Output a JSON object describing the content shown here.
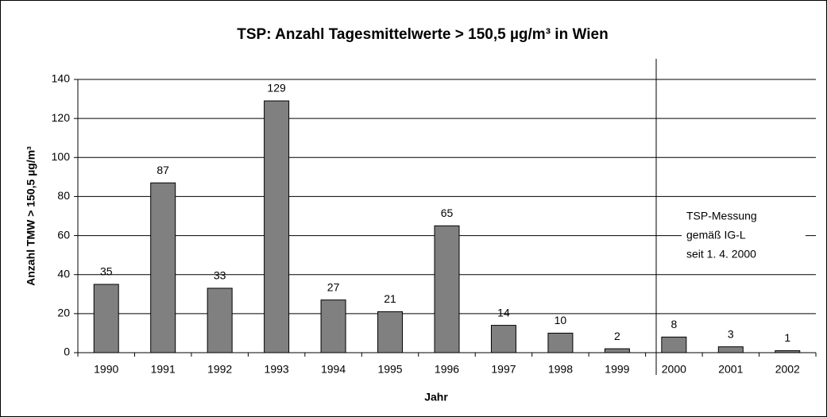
{
  "chart_data": {
    "type": "bar",
    "title": "TSP: Anzahl Tagesmittelwerte > 150,5 µg/m³ in Wien",
    "x_label": "Jahr",
    "y_label": "Anzahl TMW > 150,5 µg/m³",
    "categories": [
      "1990",
      "1991",
      "1992",
      "1993",
      "1994",
      "1995",
      "1996",
      "1997",
      "1998",
      "1999",
      "2000",
      "2001",
      "2002"
    ],
    "values": [
      35,
      87,
      33,
      129,
      27,
      21,
      65,
      14,
      10,
      2,
      8,
      3,
      1
    ],
    "color": "#808080",
    "ylim": [
      0,
      140
    ],
    "yticks": [
      0,
      20,
      40,
      60,
      80,
      100,
      120,
      140
    ],
    "grid": true,
    "annotation": [
      "TSP-Messung",
      "gemäß IG-L",
      "seit 1. 4. 2000"
    ]
  }
}
